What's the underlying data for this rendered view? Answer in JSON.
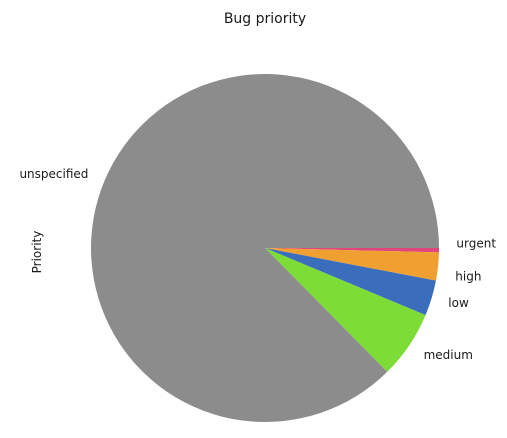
{
  "chart_data": {
    "type": "pie",
    "title": "Bug priority",
    "ylabel": "Priority",
    "start_angle_deg": 0,
    "direction": "clockwise",
    "slices": [
      {
        "label": "urgent",
        "value": 0.4,
        "color": "#e0457b"
      },
      {
        "label": "high",
        "value": 2.6,
        "color": "#f0a030"
      },
      {
        "label": "low",
        "value": 3.3,
        "color": "#3b6dbd"
      },
      {
        "label": "medium",
        "value": 6.3,
        "color": "#7ddc35"
      },
      {
        "label": "unspecified",
        "value": 87.4,
        "color": "#8c8c8c"
      }
    ]
  }
}
